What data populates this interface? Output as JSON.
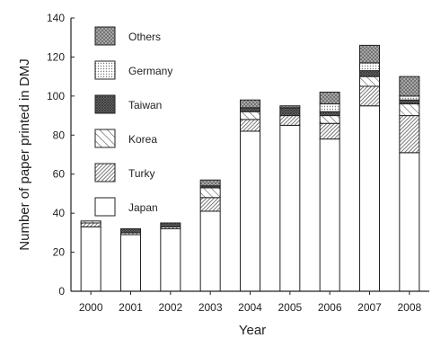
{
  "chart_data": {
    "type": "bar",
    "stacked": true,
    "xlabel": "Year",
    "ylabel": "Number of paper printed in DMJ",
    "ylim": [
      0,
      140
    ],
    "yticks": [
      0,
      20,
      40,
      60,
      80,
      100,
      120,
      140
    ],
    "categories": [
      "2000",
      "2001",
      "2002",
      "2003",
      "2004",
      "2005",
      "2006",
      "2007",
      "2008"
    ],
    "series": [
      {
        "name": "Japan",
        "pattern": "blank",
        "values": [
          33,
          29,
          32,
          41,
          82,
          85,
          78,
          95,
          71
        ]
      },
      {
        "name": "Turky",
        "pattern": "dense-hatch",
        "values": [
          2,
          1,
          1,
          7,
          6,
          5,
          8,
          10,
          19
        ]
      },
      {
        "name": "Korea",
        "pattern": "diagonal",
        "values": [
          1,
          0,
          0,
          5,
          4,
          0,
          4,
          5,
          6
        ]
      },
      {
        "name": "Taiwan",
        "pattern": "dark-cross",
        "values": [
          0,
          2,
          2,
          1,
          2,
          4,
          2,
          3,
          2
        ]
      },
      {
        "name": "Germany",
        "pattern": "dots",
        "values": [
          0,
          0,
          0,
          0,
          0,
          0,
          4,
          4,
          2
        ]
      },
      {
        "name": "Others",
        "pattern": "cross-hatch",
        "values": [
          0,
          0,
          0,
          3,
          4,
          1,
          6,
          9,
          10
        ]
      }
    ],
    "legend_order": [
      "Others",
      "Germany",
      "Taiwan",
      "Korea",
      "Turky",
      "Japan"
    ],
    "legend_position": "top-left",
    "grid": false
  }
}
